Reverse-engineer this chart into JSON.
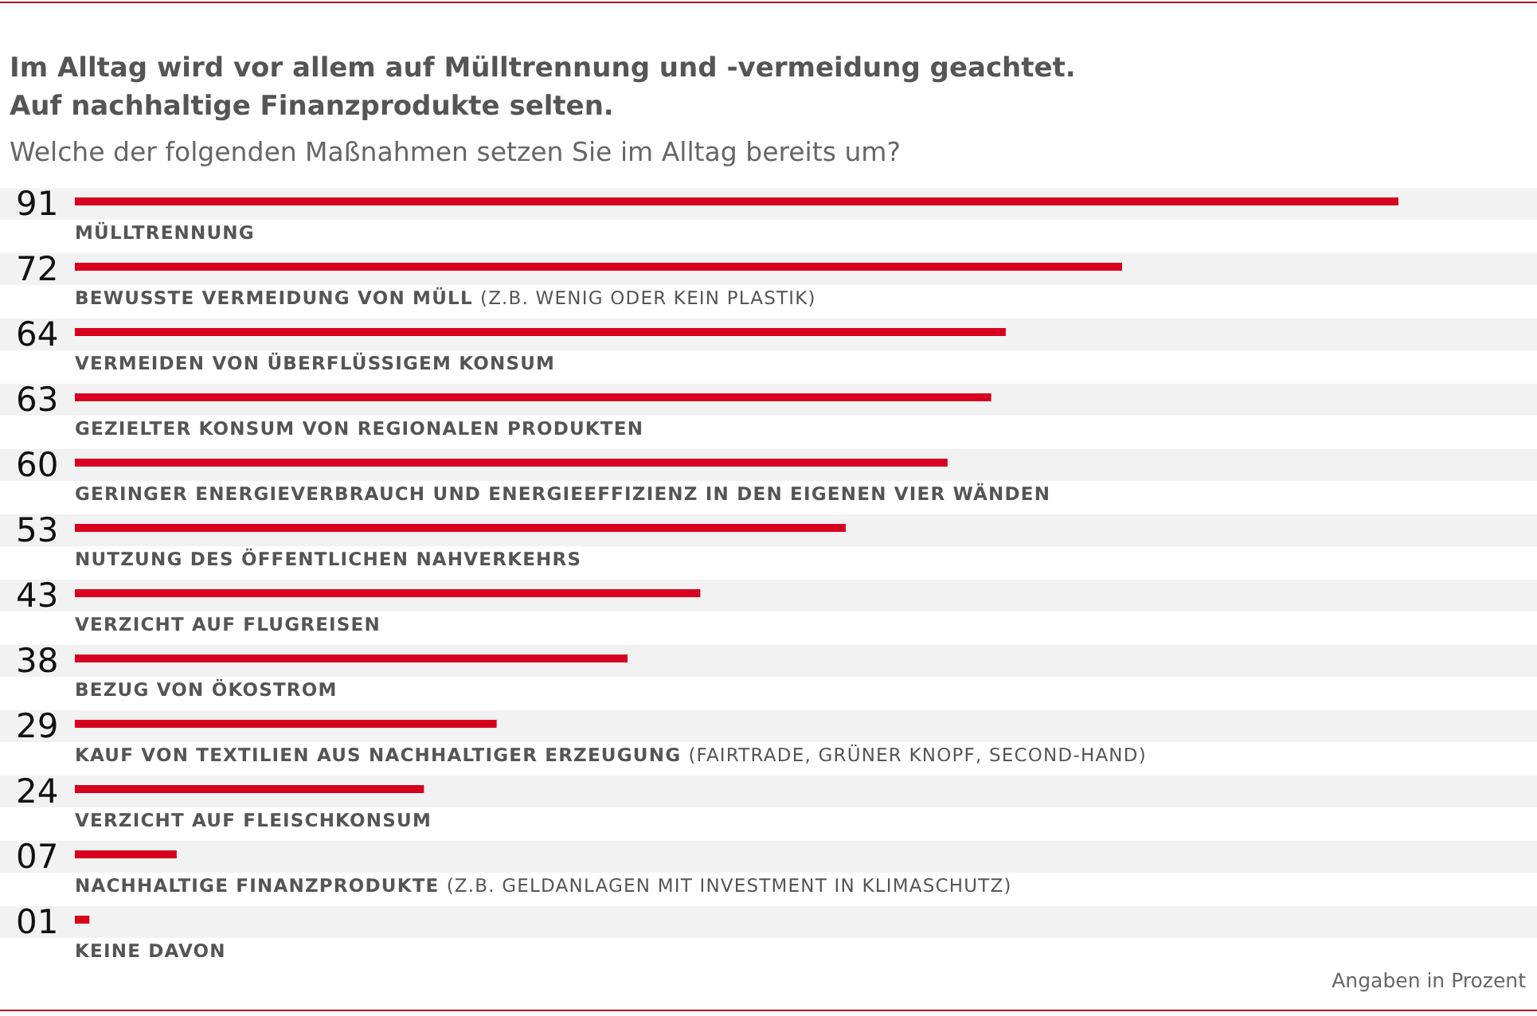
{
  "chart_data": {
    "type": "bar",
    "orientation": "horizontal",
    "title": "Im Alltag wird vor allem auf Mülltrennung und -vermeidung geachtet.\nAuf nachhaltige Finanzprodukte selten.",
    "subtitle": "Welche der folgenden Maßnahmen setzen Sie im Alltag bereits um?",
    "categories": [
      "MÜLLTRENNUNG",
      "BEWUSSTE VERMEIDUNG VON MÜLL (Z.B. WENIG ODER KEIN PLASTIK)",
      "VERMEIDEN VON ÜBERFLÜSSIGEM KONSUM",
      "GEZIELTER KONSUM VON REGIONALEN PRODUKTEN",
      "GERINGER ENERGIEVERBRAUCH UND ENERGIEEFFIZIENZ IN DEN EIGENEN VIER WÄNDEN",
      "NUTZUNG DES ÖFFENTLICHEN NAHVERKEHRS",
      "VERZICHT AUF FLUGREISEN",
      "BEZUG VON ÖKOSTROM",
      "KAUF VON TEXTILIEN AUS NACHHALTIGER ERZEUGUNG (FAIRTRADE, GRÜNER KNOPF, SECOND-HAND)",
      "VERZICHT AUF FLEISCHKONSUM",
      "NACHHALTIGE FINANZPRODUKTE (Z.B. GELDANLAGEN MIT INVESTMENT IN KLIMASCHUTZ)",
      "KEINE DAVON"
    ],
    "values": [
      91,
      72,
      64,
      63,
      60,
      53,
      43,
      38,
      29,
      24,
      7,
      1
    ],
    "value_labels": [
      "91",
      "72",
      "64",
      "63",
      "60",
      "53",
      "43",
      "38",
      "29",
      "24",
      "07",
      "01"
    ],
    "color": "#d7001e",
    "annotations": [
      "Angaben in Prozent"
    ]
  }
}
